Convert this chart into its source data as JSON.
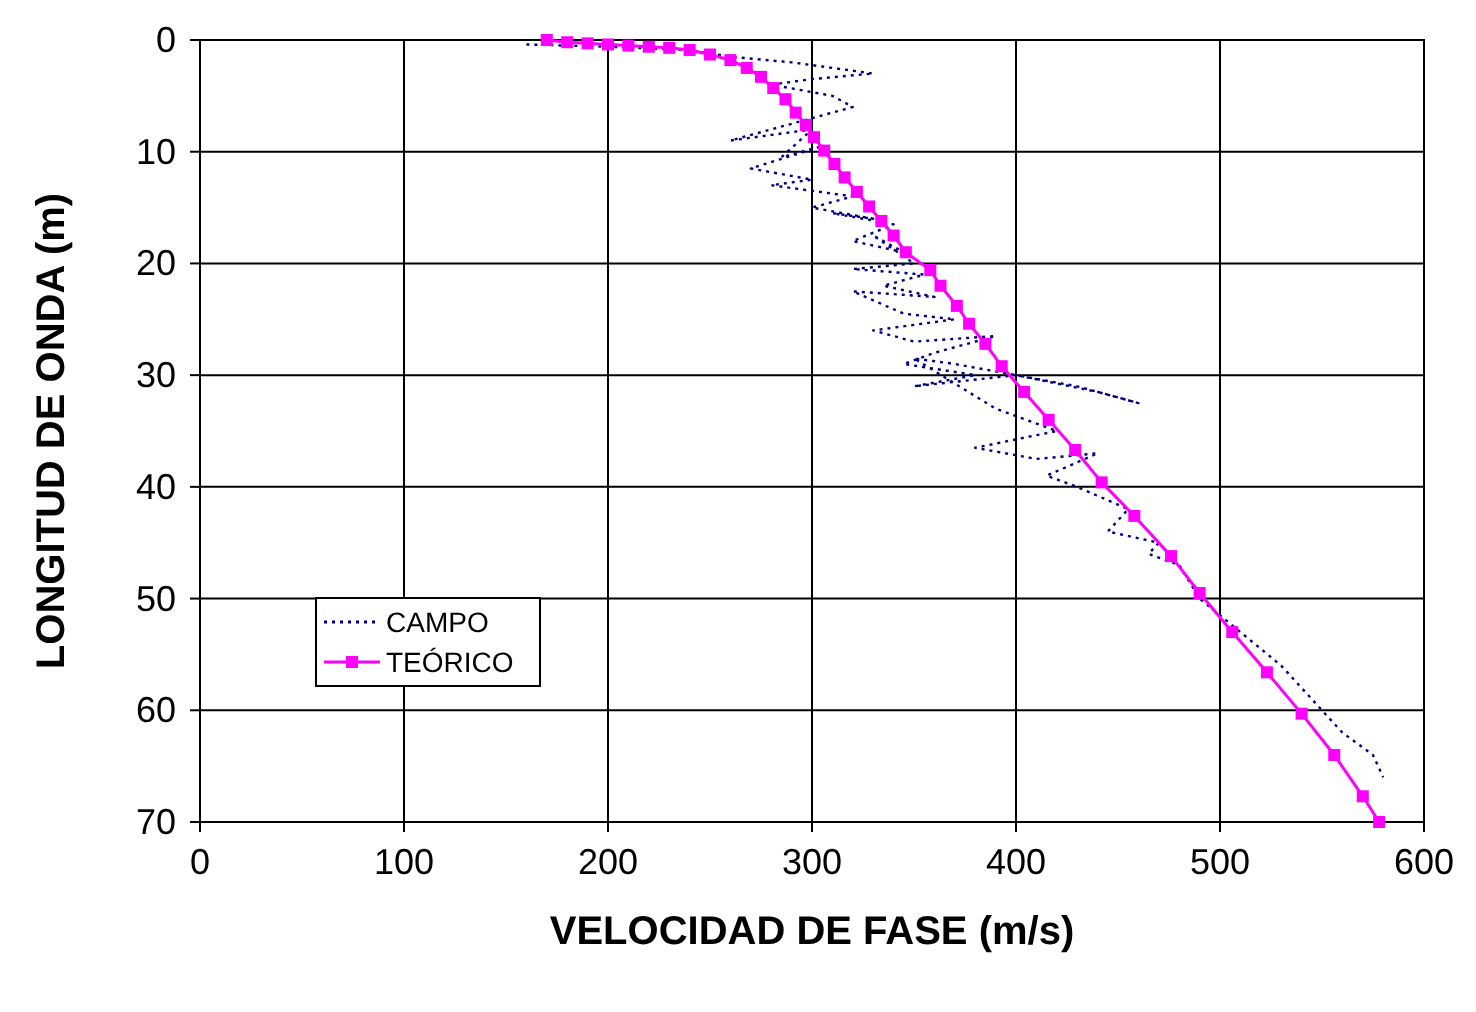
{
  "chart_data": {
    "type": "line",
    "xlabel": "VELOCIDAD DE FASE (m/s)",
    "ylabel": "LONGITUD DE ONDA (m)",
    "xlim": [
      0,
      600
    ],
    "ylim": [
      70,
      0
    ],
    "xticks": [
      0,
      100,
      200,
      300,
      400,
      500,
      600
    ],
    "yticks": [
      0,
      10,
      20,
      30,
      40,
      50,
      60,
      70
    ],
    "grid": true,
    "legend": "bottom left",
    "series": [
      {
        "name": "CAMPO",
        "color": "#000080",
        "marker": "none",
        "line_style": "dotted",
        "x": [
          160,
          200,
          240,
          260,
          290,
          330,
          300,
          280,
          310,
          320,
          290,
          260,
          300,
          285,
          305,
          270,
          300,
          280,
          320,
          300,
          330,
          310,
          340,
          320,
          345,
          330,
          350,
          320,
          355,
          335,
          360,
          320,
          345,
          370,
          330,
          350,
          390,
          360,
          345,
          380,
          350,
          375,
          400,
          430,
          460,
          440,
          400,
          370,
          350,
          390,
          420,
          380,
          410,
          440,
          415,
          430,
          455,
          445,
          470,
          465,
          480,
          490,
          510,
          530,
          550,
          560,
          575,
          580
        ],
        "values": [
          0.4,
          0.6,
          0.9,
          1.5,
          2,
          3,
          3.5,
          4,
          5,
          6,
          7.5,
          9,
          8,
          10.5,
          9.5,
          11.5,
          12.5,
          13,
          14,
          15,
          16,
          15.5,
          16.5,
          18,
          19,
          17.5,
          20,
          20.5,
          21,
          22,
          23,
          22.5,
          24.5,
          25,
          26,
          27,
          26.5,
          28,
          29,
          30,
          31,
          30.5,
          30,
          31,
          32.5,
          31.5,
          30,
          29,
          28.5,
          33,
          35,
          36.5,
          37.5,
          37,
          39,
          40,
          42,
          44,
          45,
          46,
          47,
          50,
          53,
          56,
          60,
          62,
          64,
          66
        ]
      },
      {
        "name": "TEÓRICO",
        "color": "#ff00ff",
        "marker": "square",
        "line_style": "solid",
        "x": [
          170,
          180,
          190,
          200,
          210,
          220,
          230,
          240,
          250,
          260,
          268,
          275,
          281,
          287,
          292,
          297,
          301,
          306,
          311,
          316,
          322,
          328,
          334,
          340,
          346,
          358,
          363,
          371,
          377,
          385,
          393,
          404,
          416,
          429,
          442,
          458,
          476,
          490,
          506,
          523,
          540,
          556,
          570,
          578
        ],
        "values": [
          0,
          0.2,
          0.3,
          0.4,
          0.5,
          0.6,
          0.7,
          0.9,
          1.3,
          1.8,
          2.5,
          3.3,
          4.3,
          5.3,
          6.5,
          7.6,
          8.7,
          9.9,
          11.1,
          12.3,
          13.6,
          14.9,
          16.2,
          17.5,
          19,
          20.6,
          22,
          23.8,
          25.4,
          27.2,
          29.2,
          31.5,
          34,
          36.7,
          39.6,
          42.6,
          46.2,
          49.5,
          53,
          56.6,
          60.3,
          64,
          67.7,
          70
        ]
      }
    ]
  }
}
